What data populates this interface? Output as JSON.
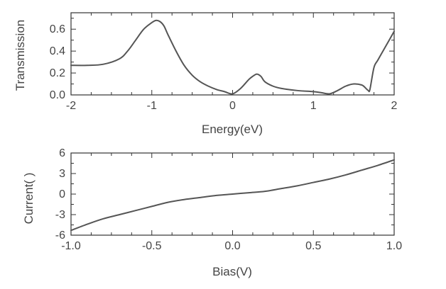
{
  "chart_data": [
    {
      "type": "line",
      "xlabel": "Energy(eV)",
      "ylabel": "Transmission",
      "xlim": [
        -2,
        2
      ],
      "ylim": [
        0,
        0.75
      ],
      "xticks": [
        -2,
        -1,
        0,
        1,
        2
      ],
      "xtick_labels": [
        "-2",
        "-1",
        "0",
        "1",
        "2"
      ],
      "yticks": [
        0,
        0.2,
        0.4,
        0.6
      ],
      "ytick_labels": [
        "0.0",
        "0.2",
        "0.4",
        "0.6"
      ],
      "grid": false,
      "series": [
        {
          "x": [
            -2.0,
            -1.8,
            -1.6,
            -1.4,
            -1.3,
            -1.2,
            -1.1,
            -1.0,
            -0.95,
            -0.9,
            -0.85,
            -0.8,
            -0.7,
            -0.6,
            -0.5,
            -0.4,
            -0.3,
            -0.2,
            -0.1,
            0.0,
            0.1,
            0.2,
            0.25,
            0.3,
            0.35,
            0.4,
            0.5,
            0.6,
            0.8,
            1.0,
            1.1,
            1.2,
            1.3,
            1.4,
            1.5,
            1.6,
            1.65,
            1.68,
            1.7,
            1.75,
            1.8,
            1.9,
            2.0
          ],
          "y": [
            0.27,
            0.27,
            0.28,
            0.33,
            0.4,
            0.5,
            0.6,
            0.66,
            0.68,
            0.67,
            0.63,
            0.55,
            0.4,
            0.27,
            0.18,
            0.12,
            0.08,
            0.05,
            0.03,
            0.01,
            0.06,
            0.14,
            0.17,
            0.19,
            0.17,
            0.12,
            0.08,
            0.06,
            0.04,
            0.03,
            0.02,
            0.01,
            0.04,
            0.08,
            0.1,
            0.09,
            0.06,
            0.04,
            0.05,
            0.25,
            0.32,
            0.45,
            0.58
          ]
        }
      ]
    },
    {
      "type": "line",
      "xlabel": "Bias(V)",
      "ylabel": "Current(  )",
      "xlim": [
        -1.0,
        1.0
      ],
      "ylim": [
        -6,
        6
      ],
      "xticks": [
        -1.0,
        -0.5,
        0.0,
        0.5,
        1.0
      ],
      "xtick_labels": [
        "-1.0",
        "-0.5",
        "0.0",
        "0.5",
        "1.0"
      ],
      "yticks": [
        -6,
        -3,
        0,
        3,
        6
      ],
      "ytick_labels": [
        "-6",
        "-3",
        "0",
        "3",
        "6"
      ],
      "grid": false,
      "series": [
        {
          "x": [
            -1.0,
            -0.9,
            -0.8,
            -0.7,
            -0.6,
            -0.5,
            -0.4,
            -0.3,
            -0.2,
            -0.1,
            0.0,
            0.1,
            0.2,
            0.3,
            0.4,
            0.5,
            0.6,
            0.7,
            0.8,
            0.9,
            1.0
          ],
          "y": [
            -5.3,
            -4.4,
            -3.6,
            -3.0,
            -2.4,
            -1.8,
            -1.2,
            -0.8,
            -0.5,
            -0.2,
            0.0,
            0.2,
            0.4,
            0.8,
            1.2,
            1.7,
            2.2,
            2.8,
            3.5,
            4.2,
            5.0
          ]
        }
      ]
    }
  ]
}
